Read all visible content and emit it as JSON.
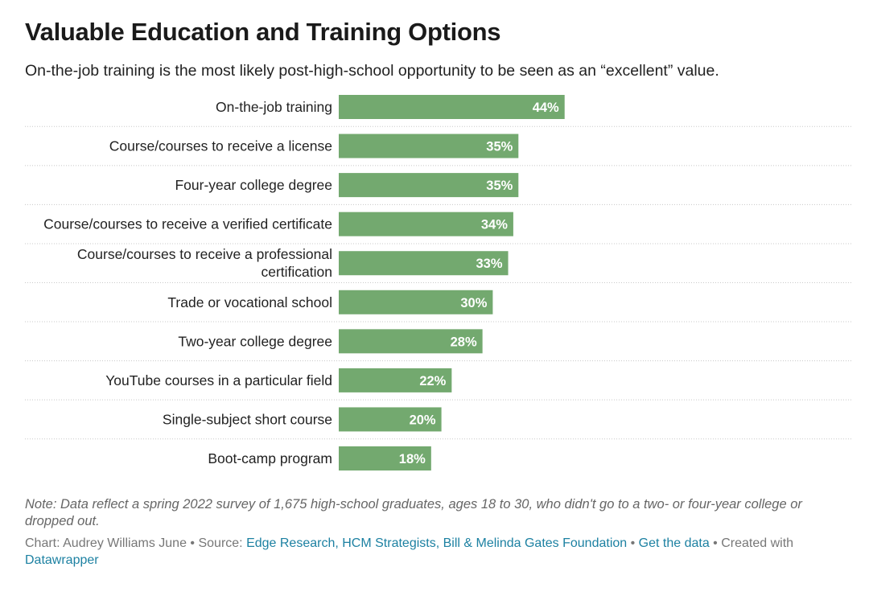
{
  "header": {
    "title": "Valuable Education and Training Options",
    "subtitle": "On-the-job training is the most likely post-high-school opportunity to be seen as an “excellent” value."
  },
  "chart_data": {
    "type": "bar",
    "orientation": "horizontal",
    "categories": [
      [
        "On-the-job training"
      ],
      [
        "Course/courses to receive a license"
      ],
      [
        "Four-year college degree"
      ],
      [
        "Course/courses to receive a verified certificate"
      ],
      [
        "Course/courses to receive a professional",
        "certification"
      ],
      [
        "Trade or vocational school"
      ],
      [
        "Two-year college degree"
      ],
      [
        "YouTube courses in a particular field"
      ],
      [
        "Single-subject short course"
      ],
      [
        "Boot-camp program"
      ]
    ],
    "values": [
      44,
      35,
      35,
      34,
      33,
      30,
      28,
      22,
      20,
      18
    ],
    "value_labels": [
      "44%",
      "35%",
      "35%",
      "34%",
      "33%",
      "30%",
      "28%",
      "22%",
      "20%",
      "18%"
    ],
    "xlim": [
      0,
      100
    ],
    "bar_color": "#73a96f",
    "grid": false,
    "legend": "none"
  },
  "footer": {
    "note": "Note: Data reflect a spring 2022 survey of 1,675 high-school graduates, ages 18 to 30, who didn't go to a two- or four-year college or dropped out.",
    "chart_by": "Chart: Audrey Williams June",
    "separator": " • ",
    "source_label": "Source: ",
    "source_link": "Edge Research, HCM Strategists, Bill & Melinda Gates Foundation",
    "get_data": "Get the data",
    "created_with": "Created with",
    "datawrapper": "Datawrapper"
  }
}
